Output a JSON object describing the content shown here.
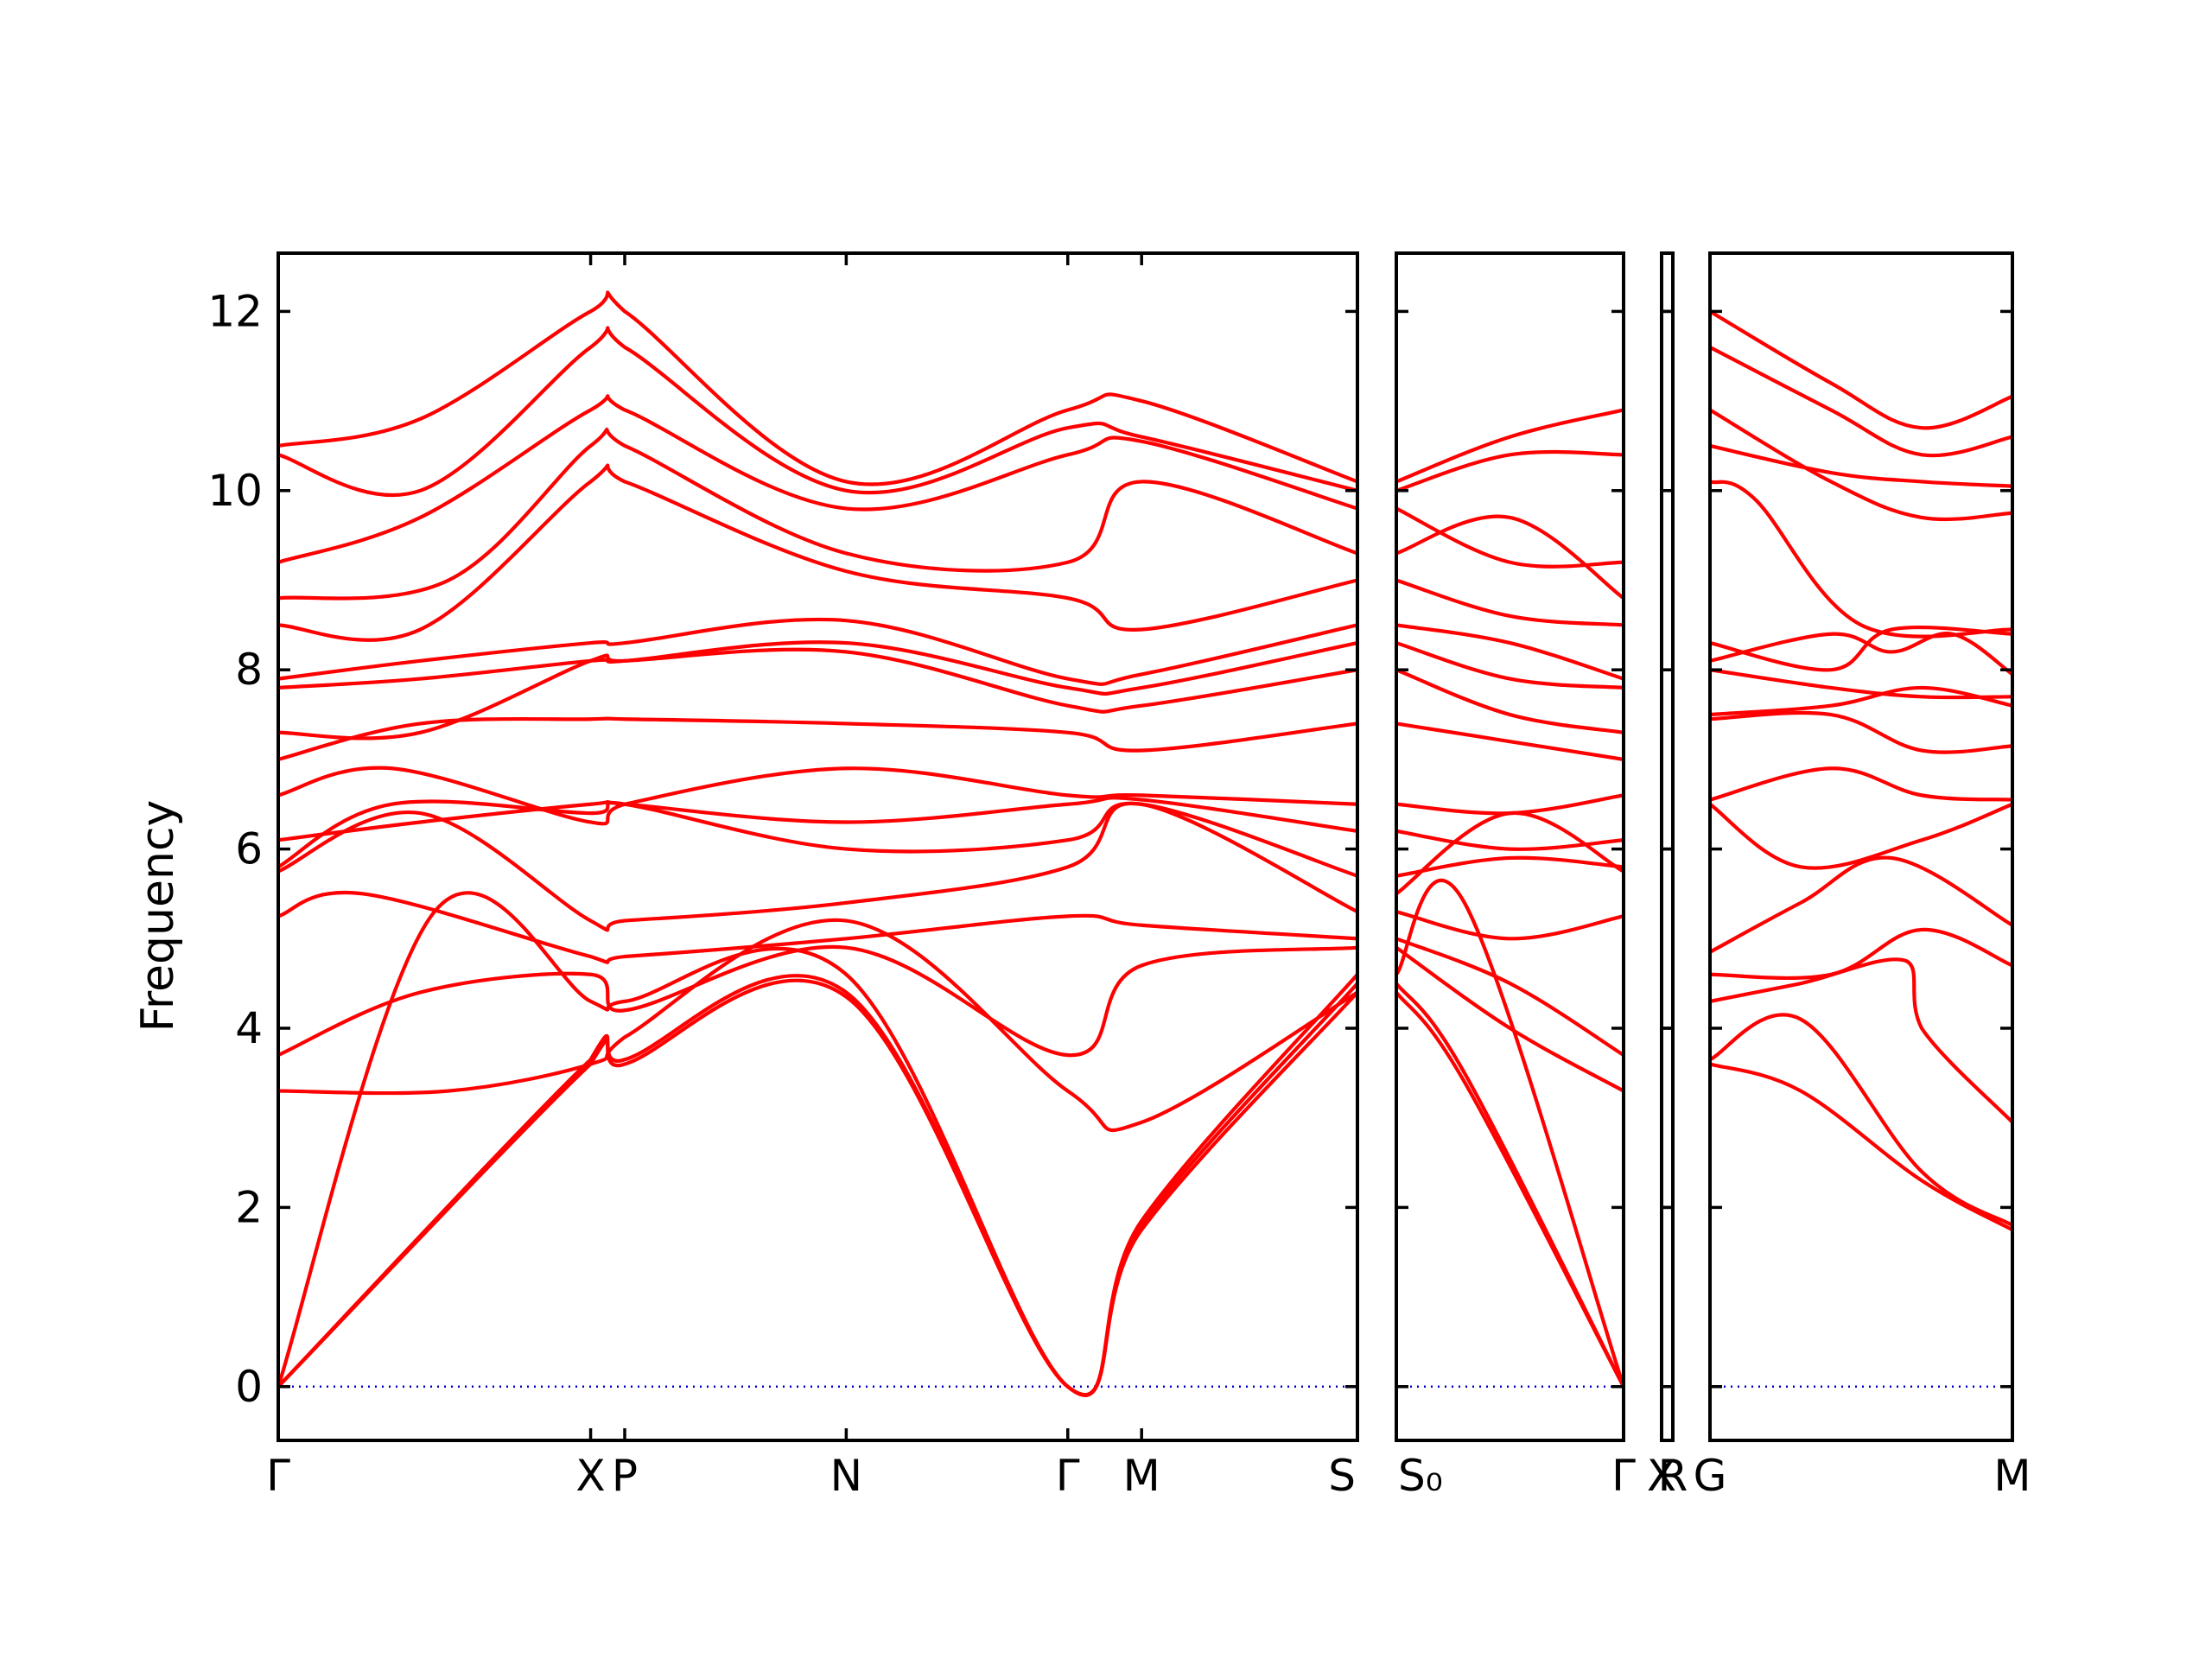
{
  "chart_data": {
    "type": "line",
    "title": "",
    "xlabel": "",
    "ylabel": "Frequency",
    "ylim": [
      -0.6,
      12.65
    ],
    "yticks": [
      0,
      2,
      4,
      6,
      8,
      10,
      12
    ],
    "grid": false,
    "legend": "none",
    "colors": {
      "bands": "#ff0000",
      "zero_line": "#0000cc",
      "axes": "#000000"
    },
    "panels": [
      {
        "x_range": [
          0,
          3.8
        ],
        "ticks": [
          {
            "x": 0.0,
            "label": "Γ"
          },
          {
            "x": 1.1,
            "label": "X"
          },
          {
            "x": 1.22,
            "label": "P"
          },
          {
            "x": 2.0,
            "label": "N"
          },
          {
            "x": 2.78,
            "label": "Γ"
          },
          {
            "x": 3.04,
            "label": "M"
          },
          {
            "x": 3.8,
            "label": "S"
          }
        ],
        "series": [
          {
            "x": [
              0,
              1.1,
              1.22,
              2.0,
              2.78,
              3.04,
              3.8
            ],
            "values": [
              0,
              3.6,
              3.6,
              4.35,
              0,
              1.75,
              4.4
            ]
          },
          {
            "x": [
              0,
              1.1,
              1.22,
              2.0,
              2.78,
              3.04,
              3.8
            ],
            "values": [
              0,
              3.65,
              3.65,
              4.4,
              0,
              1.8,
              4.5
            ]
          },
          {
            "x": [
              0,
              0.55,
              1.1,
              1.22,
              2.0,
              2.78,
              3.04,
              3.8
            ],
            "values": [
              0,
              5.3,
              4.3,
              4.3,
              4.6,
              0,
              1.85,
              4.6
            ]
          },
          {
            "x": [
              0,
              0.6,
              1.1,
              1.22,
              2.0,
              2.78,
              3.04,
              3.8
            ],
            "values": [
              3.3,
              3.3,
              3.6,
              3.9,
              5.2,
              3.3,
              2.95,
              4.4
            ]
          },
          {
            "x": [
              0,
              0.5,
              1.1,
              1.22,
              2.0,
              2.78,
              3.04,
              3.8
            ],
            "values": [
              3.7,
              4.4,
              4.6,
              4.2,
              4.9,
              3.7,
              4.7,
              4.9
            ]
          },
          {
            "x": [
              0,
              0.3,
              1.1,
              1.22,
              2.0,
              2.78,
              3.04,
              3.8
            ],
            "values": [
              5.25,
              5.5,
              4.8,
              4.8,
              5.0,
              5.25,
              5.15,
              5.0
            ]
          },
          {
            "x": [
              0,
              0.5,
              1.1,
              1.22,
              2.0,
              2.78,
              3.04,
              3.8
            ],
            "values": [
              5.75,
              6.4,
              5.2,
              5.2,
              5.4,
              5.8,
              6.5,
              5.3
            ]
          },
          {
            "x": [
              0,
              0.4,
              1.1,
              1.22,
              2.0,
              2.78,
              3.04,
              3.8
            ],
            "values": [
              5.8,
              6.5,
              6.4,
              6.5,
              6.0,
              6.1,
              6.5,
              5.7
            ]
          },
          {
            "x": [
              0,
              0.5,
              1.1,
              1.22,
              2.0,
              2.78,
              3.04,
              3.8
            ],
            "values": [
              6.1,
              6.3,
              6.5,
              6.5,
              6.3,
              6.5,
              6.55,
              6.2
            ]
          },
          {
            "x": [
              0,
              0.4,
              1.1,
              1.22,
              2.0,
              2.78,
              3.04,
              3.8
            ],
            "values": [
              6.6,
              6.9,
              6.3,
              6.5,
              6.9,
              6.6,
              6.6,
              6.5
            ]
          },
          {
            "x": [
              0,
              0.5,
              1.1,
              1.22,
              2.0,
              2.78,
              3.04,
              3.8
            ],
            "values": [
              7.0,
              7.4,
              7.45,
              7.45,
              7.4,
              7.3,
              7.1,
              7.4
            ]
          },
          {
            "x": [
              0,
              0.5,
              1.1,
              1.22,
              2.0,
              2.78,
              3.04,
              3.8
            ],
            "values": [
              7.3,
              7.3,
              8.1,
              8.1,
              8.2,
              7.6,
              7.6,
              8.0
            ]
          },
          {
            "x": [
              0,
              0.5,
              1.1,
              1.22,
              2.0,
              2.78,
              3.04,
              3.8
            ],
            "values": [
              7.8,
              7.9,
              8.1,
              8.1,
              8.3,
              7.8,
              7.8,
              8.3
            ]
          },
          {
            "x": [
              0,
              0.5,
              1.1,
              1.22,
              2.0,
              2.78,
              3.04,
              3.8
            ],
            "values": [
              7.9,
              8.1,
              8.3,
              8.3,
              8.55,
              7.9,
              7.95,
              8.5
            ]
          },
          {
            "x": [
              0,
              0.5,
              1.1,
              1.22,
              2.0,
              2.78,
              3.04,
              3.8
            ],
            "values": [
              8.5,
              8.45,
              10.1,
              10.1,
              9.1,
              8.8,
              8.45,
              9.0
            ]
          },
          {
            "x": [
              0,
              0.6,
              1.1,
              1.22,
              2.0,
              2.78,
              3.04,
              3.8
            ],
            "values": [
              8.8,
              9.0,
              10.5,
              10.5,
              9.3,
              9.2,
              10.1,
              9.3
            ]
          },
          {
            "x": [
              0,
              0.5,
              1.1,
              1.22,
              2.0,
              2.78,
              3.04,
              3.8
            ],
            "values": [
              9.2,
              9.7,
              10.9,
              10.9,
              9.8,
              10.4,
              10.55,
              9.8
            ]
          },
          {
            "x": [
              0,
              0.5,
              1.1,
              1.22,
              2.0,
              2.78,
              3.04,
              3.8
            ],
            "values": [
              10.4,
              10.0,
              11.6,
              11.6,
              10.0,
              10.7,
              10.6,
              10.0
            ]
          },
          {
            "x": [
              0,
              0.5,
              1.1,
              1.22,
              2.0,
              2.78,
              3.04,
              3.8
            ],
            "values": [
              10.5,
              10.8,
              12.0,
              12.0,
              10.1,
              10.9,
              11.0,
              10.1
            ]
          }
        ]
      },
      {
        "x_range": [
          0,
          1.0
        ],
        "ticks": [
          {
            "x": 0.0,
            "label": "S₀"
          },
          {
            "x": 1.0,
            "label": "Γ"
          }
        ],
        "series": [
          {
            "x": [
              0,
              0.3,
              1.0
            ],
            "values": [
              4.4,
              3.4,
              0
            ]
          },
          {
            "x": [
              0,
              0.3,
              1.0
            ],
            "values": [
              4.5,
              3.5,
              0
            ]
          },
          {
            "x": [
              0,
              0.3,
              1.0
            ],
            "values": [
              4.6,
              5.4,
              0
            ]
          },
          {
            "x": [
              0,
              0.5,
              1.0
            ],
            "values": [
              4.9,
              4.0,
              3.3
            ]
          },
          {
            "x": [
              0,
              0.5,
              1.0
            ],
            "values": [
              5.0,
              4.5,
              3.7
            ]
          },
          {
            "x": [
              0,
              0.5,
              1.0
            ],
            "values": [
              5.3,
              5.0,
              5.25
            ]
          },
          {
            "x": [
              0,
              0.5,
              1.0
            ],
            "values": [
              5.5,
              6.4,
              5.75
            ]
          },
          {
            "x": [
              0,
              0.5,
              1.0
            ],
            "values": [
              5.7,
              5.9,
              5.8
            ]
          },
          {
            "x": [
              0,
              0.5,
              1.0
            ],
            "values": [
              6.2,
              6.0,
              6.1
            ]
          },
          {
            "x": [
              0,
              0.5,
              1.0
            ],
            "values": [
              6.5,
              6.4,
              6.6
            ]
          },
          {
            "x": [
              0,
              0.5,
              1.0
            ],
            "values": [
              7.4,
              7.2,
              7.0
            ]
          },
          {
            "x": [
              0,
              0.5,
              1.0
            ],
            "values": [
              8.0,
              7.5,
              7.3
            ]
          },
          {
            "x": [
              0,
              0.5,
              1.0
            ],
            "values": [
              8.3,
              7.9,
              7.8
            ]
          },
          {
            "x": [
              0,
              0.5,
              1.0
            ],
            "values": [
              8.5,
              8.3,
              7.9
            ]
          },
          {
            "x": [
              0,
              0.5,
              1.0
            ],
            "values": [
              9.0,
              8.6,
              8.5
            ]
          },
          {
            "x": [
              0,
              0.5,
              1.0
            ],
            "values": [
              9.3,
              9.7,
              8.8
            ]
          },
          {
            "x": [
              0,
              0.5,
              1.0
            ],
            "values": [
              9.8,
              9.2,
              9.2
            ]
          },
          {
            "x": [
              0,
              0.5,
              1.0
            ],
            "values": [
              10.0,
              10.4,
              10.4
            ]
          },
          {
            "x": [
              0,
              0.5,
              1.0
            ],
            "values": [
              10.1,
              10.6,
              10.9
            ]
          }
        ]
      },
      {
        "x_range": [
          0,
          0.05
        ],
        "ticks": [
          {
            "x": 0.0,
            "label": "X"
          },
          {
            "x": 0.05,
            "label": "R"
          }
        ],
        "series": []
      },
      {
        "x_range": [
          0,
          1.0
        ],
        "ticks": [
          {
            "x": 0.0,
            "label": "G"
          },
          {
            "x": 1.0,
            "label": "M"
          }
        ],
        "series": [
          {
            "x": [
              0,
              0.3,
              0.7,
              1.0
            ],
            "values": [
              3.6,
              3.3,
              2.3,
              1.75
            ]
          },
          {
            "x": [
              0,
              0.3,
              0.7,
              1.0
            ],
            "values": [
              3.65,
              4.1,
              2.4,
              1.8
            ]
          },
          {
            "x": [
              0,
              0.3,
              0.65,
              0.7,
              1.0
            ],
            "values": [
              4.3,
              4.5,
              4.75,
              4.0,
              2.95
            ]
          },
          {
            "x": [
              0,
              0.4,
              0.7,
              1.0
            ],
            "values": [
              4.6,
              4.6,
              5.1,
              4.7
            ]
          },
          {
            "x": [
              0,
              0.3,
              0.6,
              1.0
            ],
            "values": [
              4.85,
              5.4,
              5.9,
              5.15
            ]
          },
          {
            "x": [
              0,
              0.3,
              0.7,
              1.0
            ],
            "values": [
              6.5,
              5.8,
              6.1,
              6.5
            ]
          },
          {
            "x": [
              0,
              0.4,
              0.7,
              1.0
            ],
            "values": [
              6.55,
              6.9,
              6.6,
              6.55
            ]
          },
          {
            "x": [
              0,
              0.4,
              0.7,
              1.0
            ],
            "values": [
              7.45,
              7.5,
              7.1,
              7.15
            ]
          },
          {
            "x": [
              0,
              0.4,
              0.7,
              1.0
            ],
            "values": [
              7.5,
              7.6,
              7.8,
              7.6
            ]
          },
          {
            "x": [
              0,
              0.4,
              0.7,
              1.0
            ],
            "values": [
              8.0,
              7.8,
              7.7,
              7.7
            ]
          },
          {
            "x": [
              0,
              0.4,
              0.6,
              0.8,
              1.0
            ],
            "values": [
              8.1,
              8.4,
              8.2,
              8.4,
              7.95
            ]
          },
          {
            "x": [
              0,
              0.4,
              0.6,
              1.0
            ],
            "values": [
              8.3,
              8.0,
              8.45,
              8.4
            ]
          },
          {
            "x": [
              0,
              0.15,
              0.5,
              1.0
            ],
            "values": [
              10.1,
              9.9,
              8.5,
              8.45
            ]
          },
          {
            "x": [
              0,
              0.4,
              0.7,
              1.0
            ],
            "values": [
              10.5,
              10.2,
              10.1,
              10.05
            ]
          },
          {
            "x": [
              0,
              0.4,
              0.7,
              1.0
            ],
            "values": [
              10.9,
              10.1,
              9.7,
              9.75
            ]
          },
          {
            "x": [
              0,
              0.4,
              0.7,
              1.0
            ],
            "values": [
              11.6,
              10.9,
              10.4,
              10.6
            ]
          },
          {
            "x": [
              0,
              0.4,
              0.7,
              1.0
            ],
            "values": [
              12.0,
              11.2,
              10.7,
              11.05
            ]
          }
        ]
      }
    ]
  }
}
